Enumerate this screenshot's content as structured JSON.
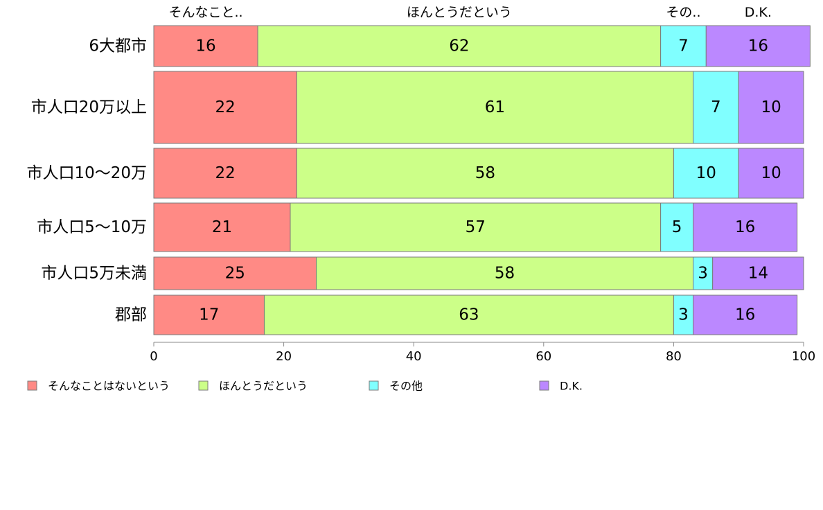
{
  "chart_data": {
    "type": "bar",
    "orientation": "horizontal",
    "stacked": true,
    "categories": [
      "6大都市",
      "市人口20万以上",
      "市人口10〜20万",
      "市人口5〜10万",
      "市人口5万未満",
      "郡部"
    ],
    "series": [
      {
        "name": "そんなことはないという",
        "values": [
          16,
          22,
          22,
          21,
          25,
          17
        ],
        "color": "#ff8a85"
      },
      {
        "name": "ほんとうだという",
        "values": [
          62,
          61,
          58,
          57,
          58,
          63
        ],
        "color": "#ccff88"
      },
      {
        "name": "その他",
        "values": [
          7,
          7,
          10,
          5,
          3,
          3
        ],
        "color": "#80ffff"
      },
      {
        "name": "D.K.",
        "values": [
          16,
          10,
          10,
          16,
          14,
          16
        ],
        "color": "#bb88ff"
      }
    ],
    "top_labels": [
      "そんなこと..",
      "ほんとうだという",
      "その..",
      "D.K."
    ],
    "xlim": [
      0,
      100
    ],
    "xticks": [
      0,
      20,
      40,
      60,
      80,
      100
    ],
    "legend_position": "bottom",
    "grid": false
  }
}
